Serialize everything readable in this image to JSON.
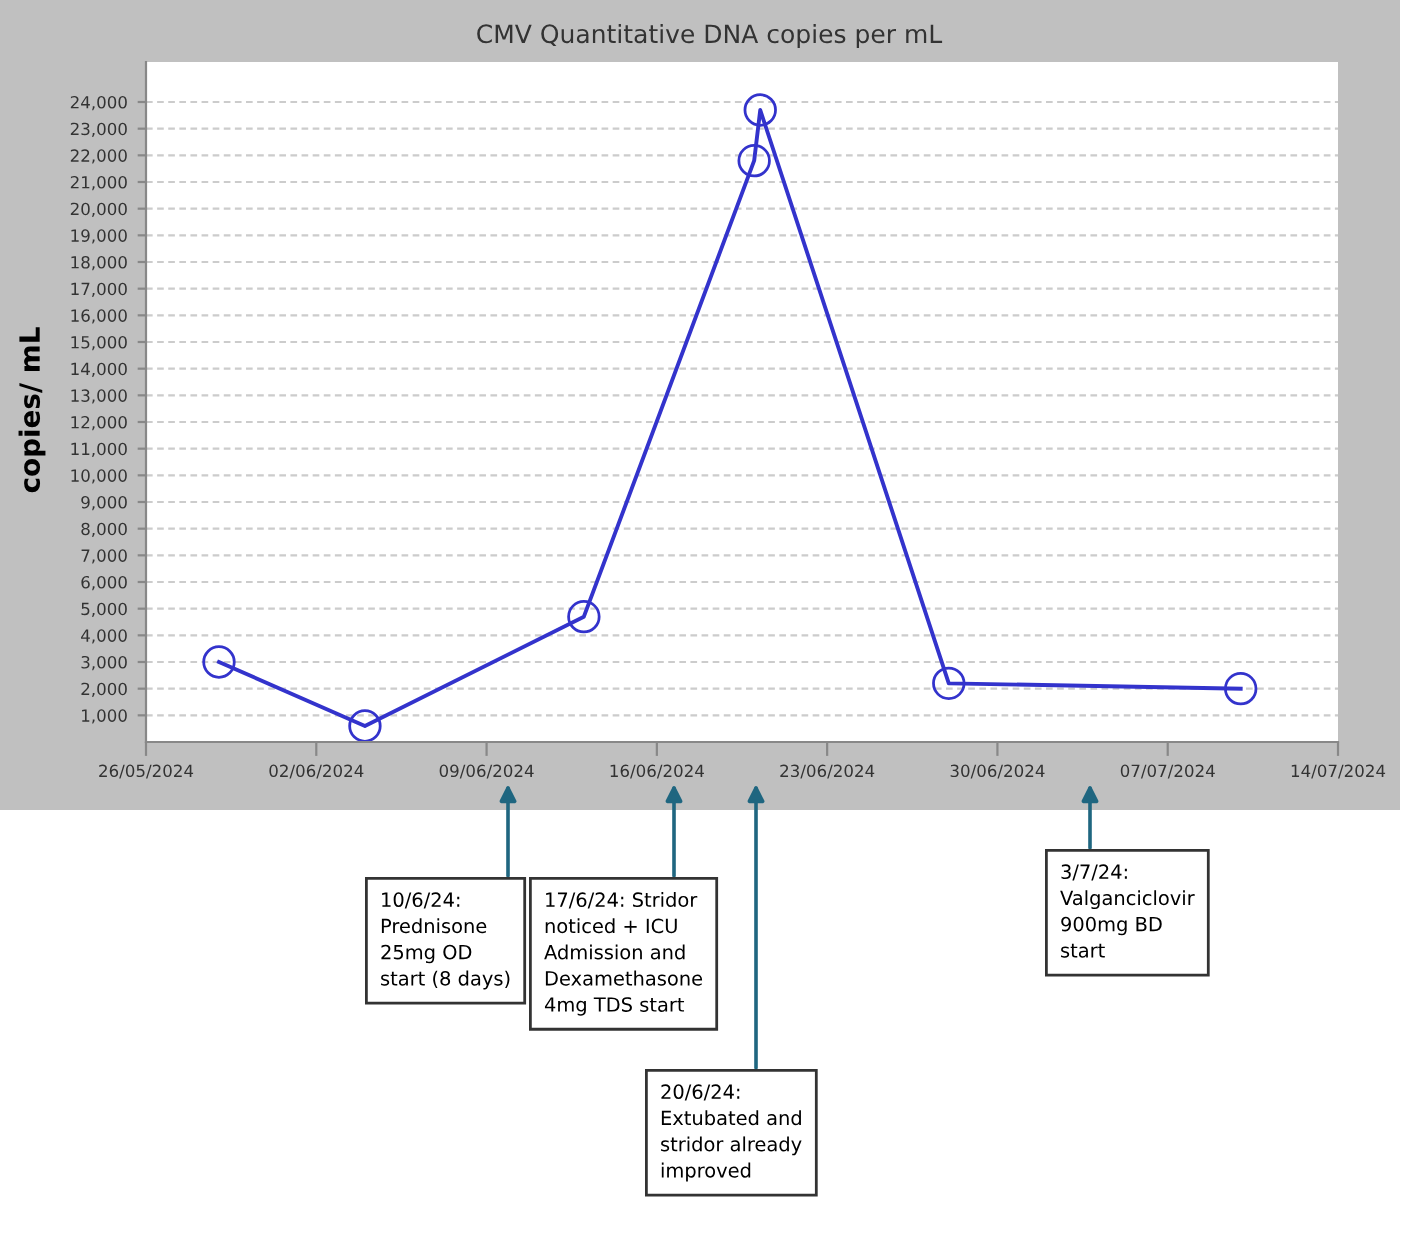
{
  "chart_data": {
    "type": "line",
    "title": "CMV Quantitative DNA copies per mL",
    "ylabel": "copies/ mL",
    "x": [
      "2024-05-29",
      "2024-06-04",
      "2024-06-13",
      "2024-06-20T00:00",
      "2024-06-20T06:00",
      "2024-06-28",
      "2024-07-10"
    ],
    "series": [
      {
        "color": "#3333cc",
        "values": [
          3000,
          600,
          4700,
          21800,
          23700,
          2200,
          2000
        ]
      }
    ],
    "marker": "circle",
    "line_style": "solid",
    "grid": "y",
    "xlim": [
      "2024-05-26",
      "2024-07-14"
    ],
    "xticks": [
      {
        "value": "2024-05-26",
        "label": "26/05/2024"
      },
      {
        "value": "2024-06-02",
        "label": "02/06/2024"
      },
      {
        "value": "2024-06-09",
        "label": "09/06/2024"
      },
      {
        "value": "2024-06-16",
        "label": "16/06/2024"
      },
      {
        "value": "2024-06-23",
        "label": "23/06/2024"
      },
      {
        "value": "2024-06-30",
        "label": "30/06/2024"
      },
      {
        "value": "2024-07-07",
        "label": "07/07/2024"
      },
      {
        "value": "2024-07-14",
        "label": "14/07/2024"
      }
    ],
    "ylim": [
      0,
      25500
    ],
    "yticks": [
      {
        "value": 1000,
        "label": "1,000"
      },
      {
        "value": 2000,
        "label": "2,000"
      },
      {
        "value": 3000,
        "label": "3,000"
      },
      {
        "value": 4000,
        "label": "4,000"
      },
      {
        "value": 5000,
        "label": "5,000"
      },
      {
        "value": 6000,
        "label": "6,000"
      },
      {
        "value": 7000,
        "label": "7,000"
      },
      {
        "value": 8000,
        "label": "8,000"
      },
      {
        "value": 9000,
        "label": "9,000"
      },
      {
        "value": 10000,
        "label": "10,000"
      },
      {
        "value": 11000,
        "label": "11,000"
      },
      {
        "value": 12000,
        "label": "12,000"
      },
      {
        "value": 13000,
        "label": "13,000"
      },
      {
        "value": 14000,
        "label": "14,000"
      },
      {
        "value": 15000,
        "label": "15,000"
      },
      {
        "value": 16000,
        "label": "16,000"
      },
      {
        "value": 17000,
        "label": "17,000"
      },
      {
        "value": 18000,
        "label": "18,000"
      },
      {
        "value": 19000,
        "label": "19,000"
      },
      {
        "value": 20000,
        "label": "20,000"
      },
      {
        "value": 21000,
        "label": "21,000"
      },
      {
        "value": 22000,
        "label": "22,000"
      },
      {
        "value": 23000,
        "label": "23,000"
      },
      {
        "value": 24000,
        "label": "24,000"
      }
    ],
    "annotations": [
      "10/6/24:\nPrednisone\n25mg OD\nstart (8 days)",
      "17/6/24: Stridor\nnoticed + ICU\nAdmission and\nDexamethasone\n4mg TDS start",
      "20/6/24:\nExtubated and\nstridor already\nimproved",
      "3/7/24:\nValganciclovir\n900mg BD\nstart"
    ]
  }
}
